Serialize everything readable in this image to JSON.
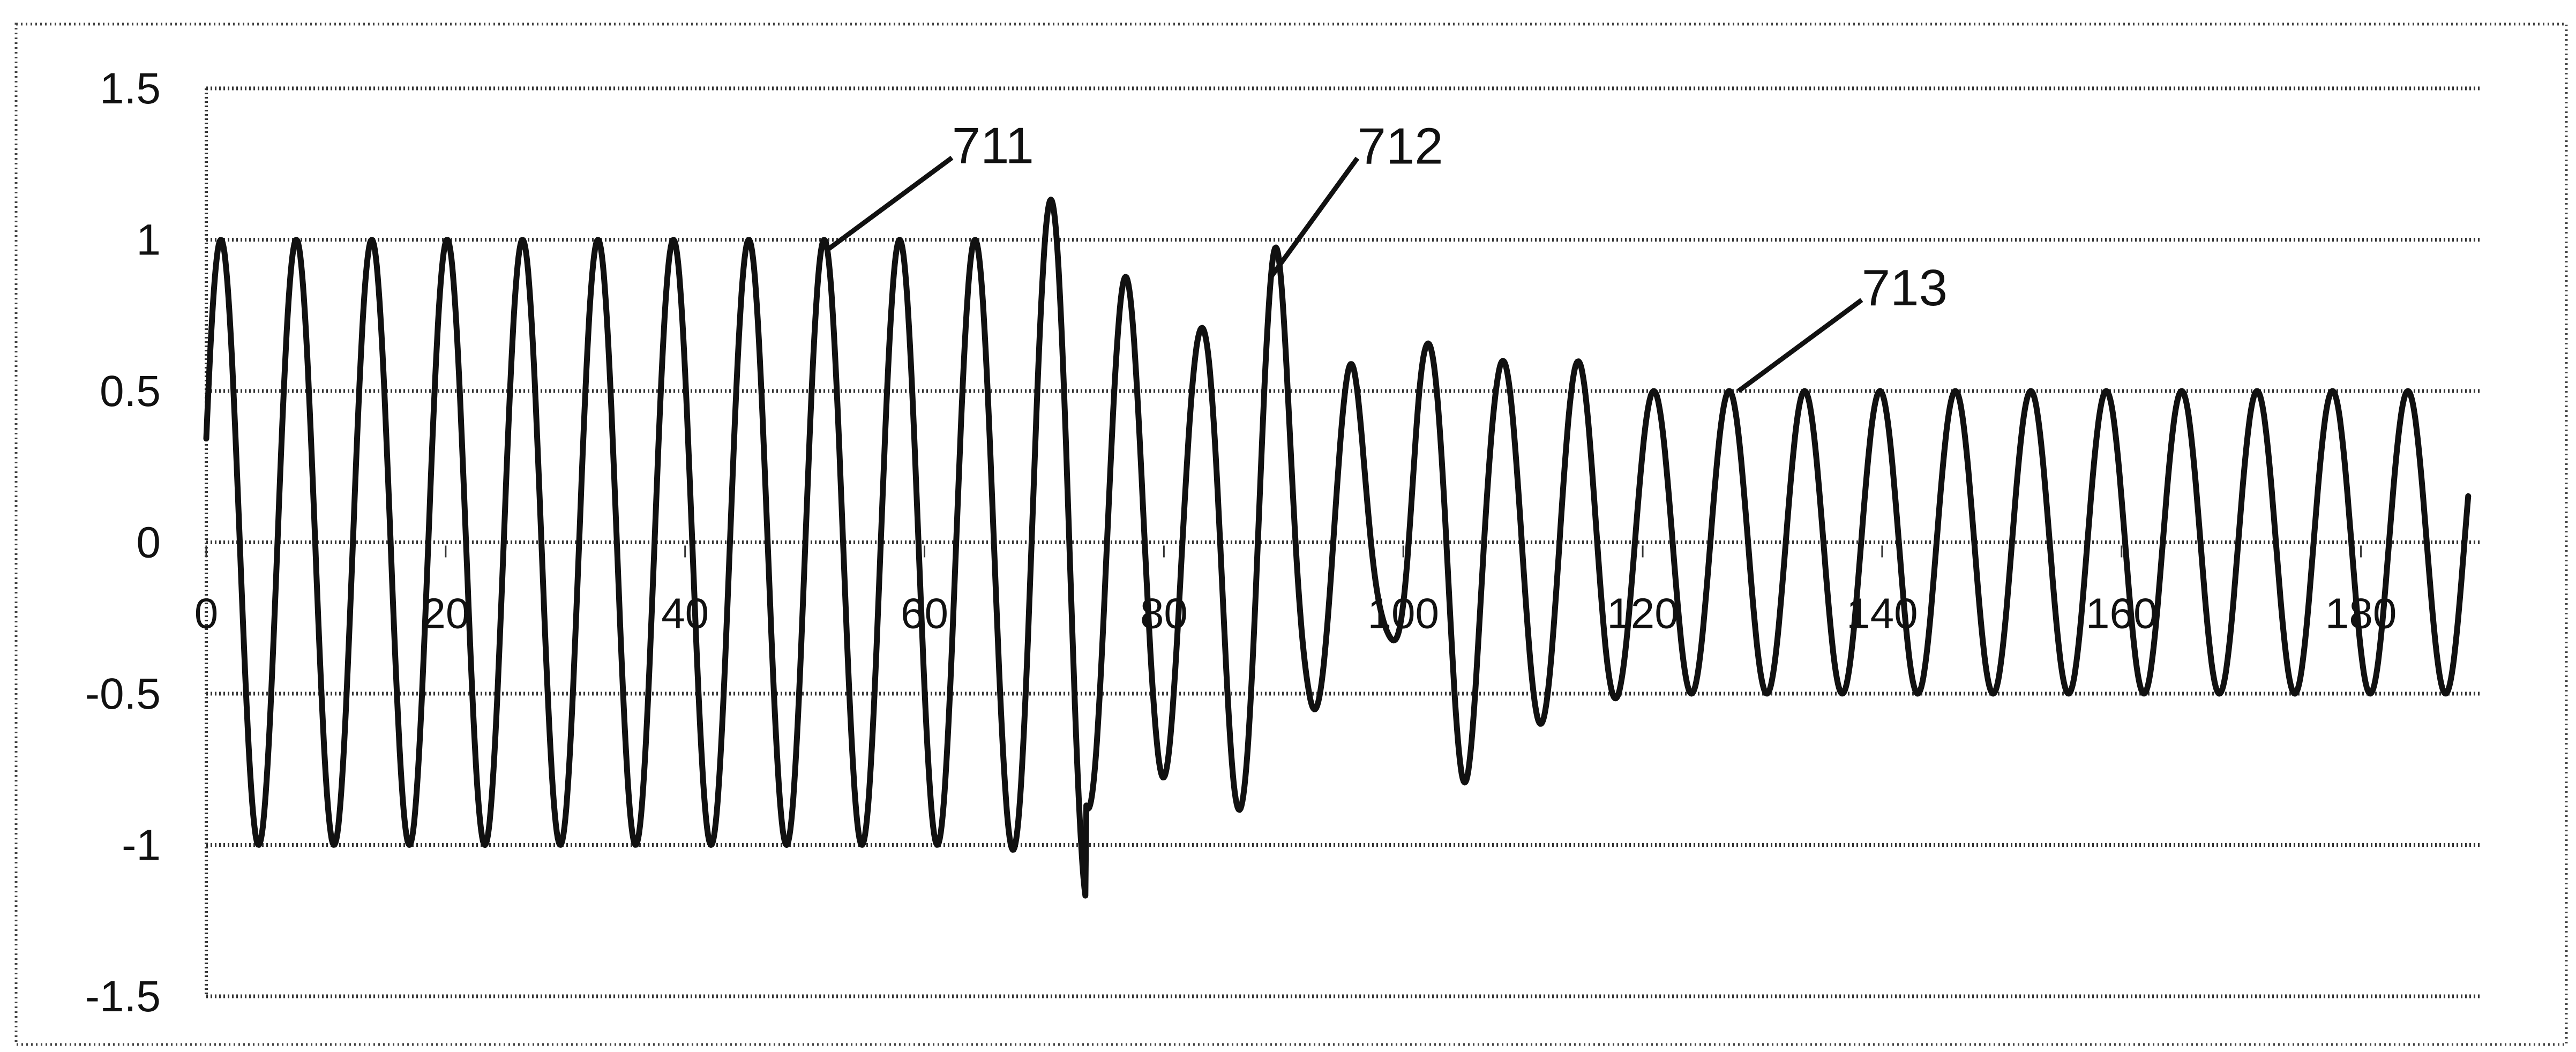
{
  "chart_data": {
    "type": "line",
    "title": "",
    "xlabel": "",
    "ylabel": "",
    "xlim": [
      0,
      190
    ],
    "ylim": [
      -1.5,
      1.5
    ],
    "grid": true,
    "legend": "none",
    "y_ticks": [
      "1.5",
      "1",
      "0.5",
      "0",
      "-0.5",
      "-1",
      "-1.5"
    ],
    "x_ticks": [
      "0",
      "20",
      "40",
      "60",
      "80",
      "100",
      "120",
      "140",
      "160",
      "180"
    ],
    "series": [
      {
        "period": 6.3,
        "segments": [
          {
            "x_start": 0,
            "x_end": 66,
            "amplitude": 1.0
          },
          {
            "x_start": 66,
            "x_end": 119,
            "amplitude": "varying 0.6–1.2"
          },
          {
            "x_start": 119,
            "x_end": 189,
            "amplitude": 0.5
          }
        ],
        "extremes": [
          {
            "x": 73.5,
            "y": -1.2
          },
          {
            "x": 70.2,
            "y": 0.88
          },
          {
            "x": 76.5,
            "y": 0.88
          },
          {
            "x": 79.6,
            "y": -0.78
          },
          {
            "x": 82.7,
            "y": 0.7
          },
          {
            "x": 85.9,
            "y": -0.88
          },
          {
            "x": 89.0,
            "y": 0.99
          },
          {
            "x": 92.2,
            "y": -0.55
          },
          {
            "x": 95.3,
            "y": 0.6
          },
          {
            "x": 98.5,
            "y": -0.3
          },
          {
            "x": 101.6,
            "y": 0.65
          },
          {
            "x": 104.8,
            "y": -0.8
          },
          {
            "x": 107.9,
            "y": 0.6
          },
          {
            "x": 111.1,
            "y": -0.6
          },
          {
            "x": 114.2,
            "y": 0.6
          }
        ]
      }
    ],
    "annotations": [
      {
        "label": "711",
        "x": 52,
        "y": 0.97
      },
      {
        "label": "712",
        "x": 89,
        "y": 0.88
      },
      {
        "label": "713",
        "x": 128,
        "y": 0.5
      }
    ]
  }
}
